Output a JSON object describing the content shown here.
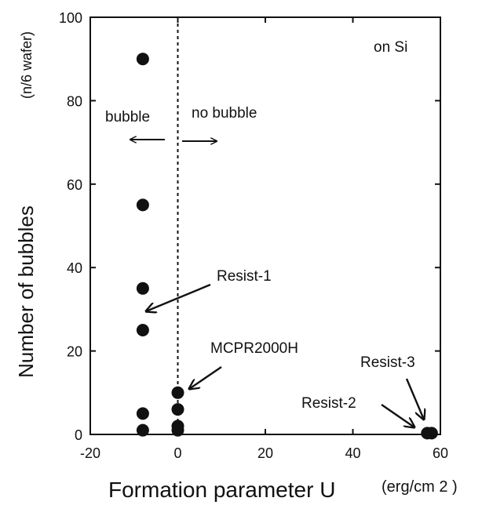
{
  "chart_data": {
    "type": "scatter",
    "title": "",
    "xlabel": "Formation parameter  U",
    "xunit": "(erg/cm 2 )",
    "ylabel": "Number of bubbles",
    "yunit": "(n/6 wafer)",
    "xlim": [
      -20,
      60
    ],
    "ylim": [
      0,
      100
    ],
    "xticks": [
      -20,
      0,
      20,
      40,
      60
    ],
    "yticks": [
      0,
      20,
      40,
      60,
      80,
      100
    ],
    "xtick_labels": [
      "-20",
      "0",
      "20",
      "40",
      "60"
    ],
    "ytick_labels": [
      "0",
      "20",
      "40",
      "60",
      "80",
      "100"
    ],
    "grid": false,
    "legend": "none",
    "threshold_x": 0,
    "series": [
      {
        "name": "Resist-1",
        "points": [
          {
            "x": -8,
            "y": 90
          },
          {
            "x": -8,
            "y": 55
          },
          {
            "x": -8,
            "y": 35
          },
          {
            "x": -8,
            "y": 25
          },
          {
            "x": -8,
            "y": 5
          },
          {
            "x": -8,
            "y": 1
          }
        ]
      },
      {
        "name": "MCPR2000H",
        "points": [
          {
            "x": 0,
            "y": 10
          },
          {
            "x": 0,
            "y": 6
          },
          {
            "x": 0,
            "y": 2
          },
          {
            "x": 0,
            "y": 1
          }
        ]
      },
      {
        "name": "Resist-2",
        "points": [
          {
            "x": 57,
            "y": 0.3
          }
        ]
      },
      {
        "name": "Resist-3",
        "points": [
          {
            "x": 58,
            "y": 0.3
          }
        ]
      }
    ],
    "annotations": {
      "substrate": "on Si",
      "bubble": "bubble",
      "no_bubble": "no bubble",
      "resist1": "Resist-1",
      "mcpr": "MCPR2000H",
      "resist2": "Resist-2",
      "resist3": "Resist-3"
    }
  }
}
